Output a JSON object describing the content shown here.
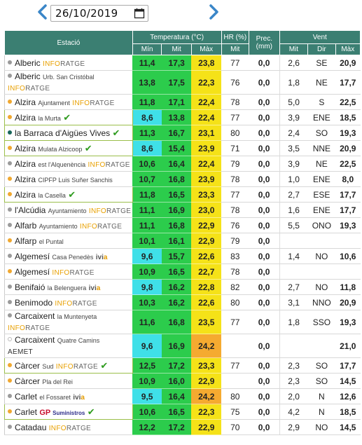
{
  "date": "26/10/2019",
  "headers": {
    "station": "Estació",
    "temperature": "Temperatura (°C)",
    "hr": "HR (%)",
    "prec": "Prec. (mm)",
    "wind": "Vent",
    "min": "Mín",
    "mit": "Mit",
    "max": "Màx",
    "hr_mit": "Mit",
    "w_mit": "Mit",
    "w_dir": "Dir",
    "w_max": "Màx"
  },
  "colors": {
    "header": "#3b7f72",
    "cyan": "#3fe0e8",
    "green": "#2ccc4c",
    "yellow": "#f5e218",
    "orange": "#f5aa30",
    "dot_orange": "#f0a830",
    "dot_grey": "#9a9a9a",
    "dot_teal": "#17665a"
  },
  "rows": [
    {
      "name": "Alberic",
      "sub": "",
      "brand": "INFORATGE",
      "brandType": "inforatge",
      "check": false,
      "dot": "dot_grey",
      "min": "11,4",
      "mit": "17,3",
      "max": "23,8",
      "hr": "77",
      "prec": "0,0",
      "wmit": "2,6",
      "dir": "SE",
      "wmax": "20,9",
      "c1": "green",
      "c2": "green",
      "c3": "yellow",
      "tall": false,
      "boxed": false
    },
    {
      "name": "Alberic",
      "sub": "Urb. San Cristóbal",
      "brand": "INFORATGE",
      "brandType": "inforatge",
      "check": false,
      "dot": "dot_grey",
      "min": "13,8",
      "mit": "17,5",
      "max": "22,3",
      "hr": "76",
      "prec": "0,0",
      "wmit": "1,8",
      "dir": "NE",
      "wmax": "17,7",
      "c1": "green",
      "c2": "green",
      "c3": "yellow",
      "tall": true,
      "boxed": false
    },
    {
      "name": "Alzira",
      "sub": "Ajuntament",
      "brand": "INFORATGE",
      "brandType": "inforatge",
      "check": false,
      "dot": "dot_orange",
      "min": "11,8",
      "mit": "17,1",
      "max": "22,4",
      "hr": "78",
      "prec": "0,0",
      "wmit": "5,0",
      "dir": "S",
      "wmax": "22,5",
      "c1": "green",
      "c2": "green",
      "c3": "yellow",
      "tall": false,
      "boxed": false
    },
    {
      "name": "Alzira",
      "sub": "la Murta",
      "brand": "",
      "brandType": "",
      "check": true,
      "dot": "dot_orange",
      "min": "8,6",
      "mit": "13,8",
      "max": "22,4",
      "hr": "77",
      "prec": "0,0",
      "wmit": "3,9",
      "dir": "ENE",
      "wmax": "18,5",
      "c1": "cyan",
      "c2": "green",
      "c3": "yellow",
      "tall": false,
      "boxed": true
    },
    {
      "name": "la Barraca d'Aigües Vives",
      "sub": "",
      "brand": "",
      "brandType": "",
      "check": true,
      "dot": "dot_teal",
      "min": "11,3",
      "mit": "16,7",
      "max": "23,1",
      "hr": "80",
      "prec": "0,0",
      "wmit": "2,4",
      "dir": "SO",
      "wmax": "19,3",
      "c1": "green",
      "c2": "green",
      "c3": "yellow",
      "tall": false,
      "boxed": true
    },
    {
      "name": "Alzira",
      "sub": "Mulata Alzicoop",
      "brand": "",
      "brandType": "",
      "check": true,
      "dot": "dot_orange",
      "min": "8,6",
      "mit": "15,4",
      "max": "23,9",
      "hr": "71",
      "prec": "0,0",
      "wmit": "3,5",
      "dir": "NNE",
      "wmax": "20,9",
      "c1": "cyan",
      "c2": "green",
      "c3": "yellow",
      "tall": false,
      "boxed": true
    },
    {
      "name": "Alzira",
      "sub": "est l'Alquenència",
      "brand": "INFORATGE",
      "brandType": "inforatge",
      "check": false,
      "dot": "dot_grey",
      "min": "10,6",
      "mit": "16,4",
      "max": "22,4",
      "hr": "79",
      "prec": "0,0",
      "wmit": "3,9",
      "dir": "NE",
      "wmax": "22,5",
      "c1": "green",
      "c2": "green",
      "c3": "yellow",
      "tall": false,
      "boxed": false
    },
    {
      "name": "Alzira",
      "sub": "CIPFP Luis Suñer Sanchis",
      "brand": "",
      "brandType": "",
      "check": false,
      "dot": "dot_orange",
      "min": "10,7",
      "mit": "16,8",
      "max": "23,9",
      "hr": "78",
      "prec": "0,0",
      "wmit": "1,0",
      "dir": "ENE",
      "wmax": "8,0",
      "c1": "green",
      "c2": "green",
      "c3": "yellow",
      "tall": false,
      "boxed": false
    },
    {
      "name": "Alzira",
      "sub": "la Casella",
      "brand": "",
      "brandType": "",
      "check": true,
      "dot": "dot_orange",
      "min": "11,8",
      "mit": "16,5",
      "max": "23,3",
      "hr": "77",
      "prec": "0,0",
      "wmit": "2,7",
      "dir": "ESE",
      "wmax": "17,7",
      "c1": "green",
      "c2": "green",
      "c3": "yellow",
      "tall": false,
      "boxed": true
    },
    {
      "name": "l'Alcúdia",
      "sub": "Ayuntamiento",
      "brand": "INFORATGE",
      "brandType": "inforatge",
      "check": false,
      "dot": "dot_grey",
      "min": "11,1",
      "mit": "16,9",
      "max": "23,0",
      "hr": "78",
      "prec": "0,0",
      "wmit": "1,6",
      "dir": "ENE",
      "wmax": "17,7",
      "c1": "green",
      "c2": "green",
      "c3": "yellow",
      "tall": false,
      "boxed": false
    },
    {
      "name": "Alfarb",
      "sub": "Ayuntamiento",
      "brand": "INFORATGE",
      "brandType": "inforatge",
      "check": false,
      "dot": "dot_grey",
      "min": "11,1",
      "mit": "16,8",
      "max": "22,9",
      "hr": "76",
      "prec": "0,0",
      "wmit": "5,5",
      "dir": "ONO",
      "wmax": "19,3",
      "c1": "green",
      "c2": "green",
      "c3": "yellow",
      "tall": false,
      "boxed": false
    },
    {
      "name": "Alfarp",
      "sub": "el Puntal",
      "brand": "",
      "brandType": "",
      "check": false,
      "dot": "dot_orange",
      "min": "10,1",
      "mit": "16,1",
      "max": "22,9",
      "hr": "79",
      "prec": "0,0",
      "wmit": "",
      "dir": "",
      "wmax": "",
      "c1": "green",
      "c2": "green",
      "c3": "yellow",
      "tall": false,
      "boxed": false
    },
    {
      "name": "Algemesí",
      "sub": "Casa Penedès",
      "brand": "ivia",
      "brandType": "ivia",
      "check": false,
      "dot": "dot_grey",
      "min": "9,6",
      "mit": "15,7",
      "max": "22,6",
      "hr": "83",
      "prec": "0,0",
      "wmit": "1,4",
      "dir": "NO",
      "wmax": "10,6",
      "c1": "cyan",
      "c2": "green",
      "c3": "yellow",
      "tall": false,
      "boxed": false
    },
    {
      "name": "Algemesí",
      "sub": "",
      "brand": "INFORATGE",
      "brandType": "inforatge",
      "check": false,
      "dot": "dot_orange",
      "min": "10,9",
      "mit": "16,5",
      "max": "22,7",
      "hr": "78",
      "prec": "0,0",
      "wmit": "",
      "dir": "",
      "wmax": "",
      "c1": "green",
      "c2": "green",
      "c3": "yellow",
      "tall": false,
      "boxed": false
    },
    {
      "name": "Benifaió",
      "sub": "la Belenguera",
      "brand": "ivia",
      "brandType": "ivia",
      "check": false,
      "dot": "dot_grey",
      "min": "9,8",
      "mit": "16,2",
      "max": "22,8",
      "hr": "82",
      "prec": "0,0",
      "wmit": "2,7",
      "dir": "NO",
      "wmax": "11,8",
      "c1": "cyan",
      "c2": "green",
      "c3": "yellow",
      "tall": false,
      "boxed": false
    },
    {
      "name": "Benimodo",
      "sub": "",
      "brand": "INFORATGE",
      "brandType": "inforatge",
      "check": false,
      "dot": "dot_grey",
      "min": "10,3",
      "mit": "16,2",
      "max": "22,6",
      "hr": "80",
      "prec": "0,0",
      "wmit": "3,1",
      "dir": "NNO",
      "wmax": "20,9",
      "c1": "green",
      "c2": "green",
      "c3": "yellow",
      "tall": false,
      "boxed": false
    },
    {
      "name": "Carcaixent",
      "sub": "la Muntenyeta",
      "brand": "INFORATGE",
      "brandType": "inforatge",
      "check": false,
      "dot": "dot_grey",
      "min": "11,6",
      "mit": "16,8",
      "max": "23,5",
      "hr": "77",
      "prec": "0,0",
      "wmit": "1,8",
      "dir": "SSO",
      "wmax": "19,3",
      "c1": "green",
      "c2": "green",
      "c3": "yellow",
      "tall": true,
      "boxed": false
    },
    {
      "name": "Carcaixent",
      "sub": "Quatre Camins",
      "brand": "AEMET",
      "brandType": "aemet",
      "check": false,
      "dot": "none",
      "min": "9,6",
      "mit": "16,9",
      "max": "24,2",
      "hr": "",
      "prec": "0,0",
      "wmit": "",
      "dir": "",
      "wmax": "21,0",
      "c1": "cyan",
      "c2": "green",
      "c3": "orange",
      "tall": true,
      "boxed": false
    },
    {
      "name": "Càrcer",
      "sub": "Sud",
      "brand": "INFORATGE",
      "brandType": "inforatge",
      "check": true,
      "dot": "dot_orange",
      "min": "12,5",
      "mit": "17,2",
      "max": "23,3",
      "hr": "77",
      "prec": "0,0",
      "wmit": "2,3",
      "dir": "SO",
      "wmax": "17,7",
      "c1": "green",
      "c2": "green",
      "c3": "yellow",
      "tall": false,
      "boxed": true
    },
    {
      "name": "Càrcer",
      "sub": "Pla del Rei",
      "brand": "",
      "brandType": "",
      "check": false,
      "dot": "dot_orange",
      "min": "10,9",
      "mit": "16,0",
      "max": "22,9",
      "hr": "",
      "prec": "0,0",
      "wmit": "2,3",
      "dir": "SO",
      "wmax": "14,5",
      "c1": "green",
      "c2": "green",
      "c3": "yellow",
      "tall": false,
      "boxed": false
    },
    {
      "name": "Carlet",
      "sub": "el Fossaret",
      "brand": "ivia",
      "brandType": "ivia",
      "check": false,
      "dot": "dot_grey",
      "min": "9,5",
      "mit": "16,4",
      "max": "24,2",
      "hr": "80",
      "prec": "0,0",
      "wmit": "2,0",
      "dir": "N",
      "wmax": "12,6",
      "c1": "cyan",
      "c2": "green",
      "c3": "orange",
      "tall": false,
      "boxed": false
    },
    {
      "name": "Carlet",
      "sub": "",
      "brand": "GP",
      "brandType": "gp",
      "check": true,
      "dot": "dot_orange",
      "min": "10,6",
      "mit": "16,5",
      "max": "22,3",
      "hr": "75",
      "prec": "0,0",
      "wmit": "4,2",
      "dir": "N",
      "wmax": "18,5",
      "c1": "green",
      "c2": "green",
      "c3": "yellow",
      "tall": false,
      "boxed": true
    },
    {
      "name": "Catadau",
      "sub": "",
      "brand": "INFORATGE",
      "brandType": "inforatge",
      "check": false,
      "dot": "dot_grey",
      "min": "12,2",
      "mit": "17,2",
      "max": "22,9",
      "hr": "70",
      "prec": "0,0",
      "wmit": "2,9",
      "dir": "NO",
      "wmax": "14,5",
      "c1": "green",
      "c2": "green",
      "c3": "yellow",
      "tall": false,
      "boxed": false
    }
  ],
  "gp_suffix": "Suministros"
}
